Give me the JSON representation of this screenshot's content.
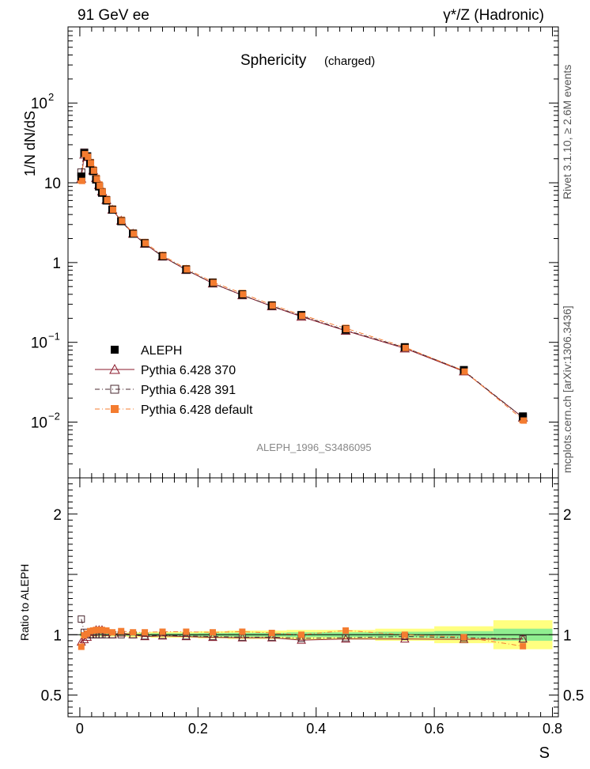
{
  "header": {
    "left": "91 GeV ee",
    "right": "γ*/Z (Hadronic)"
  },
  "side_labels": {
    "rivet": "Rivet 3.1.10, ≥ 2.6M events",
    "mcplots": "mcplots.cern.ch [arXiv:1306.3436]"
  },
  "chart_data": {
    "type": "scatter",
    "title": "Sphericity",
    "subtitle": "(charged)",
    "analysis_tag": "ALEPH_1996_S3486095",
    "xlabel": "S",
    "ylabel": "1/N dN/dS",
    "ratio_ylabel": "Ratio to ALEPH",
    "xlim": [
      -0.02,
      0.81
    ],
    "ylim": [
      0.002,
      900
    ],
    "yscale": "log",
    "ratio_ylim": [
      0.32,
      2.3
    ],
    "x_ticks": [
      "0",
      "0.2",
      "0.4",
      "0.6",
      "0.8"
    ],
    "x_tick_values": [
      0,
      0.2,
      0.4,
      0.6,
      0.8
    ],
    "y_ticks": [
      {
        "value": 0.01,
        "base": "10",
        "exp": "−2"
      },
      {
        "value": 0.1,
        "base": "10",
        "exp": "−1"
      },
      {
        "value": 1,
        "base": "1",
        "exp": ""
      },
      {
        "value": 10,
        "base": "10",
        "exp": ""
      },
      {
        "value": 100,
        "base": "10",
        "exp": "2"
      }
    ],
    "ratio_ticks": [
      {
        "value": 0.5,
        "label": "0.5"
      },
      {
        "value": 1,
        "label": "1"
      },
      {
        "value": 2,
        "label": "2"
      }
    ],
    "x": [
      0.0025,
      0.0075,
      0.0125,
      0.0175,
      0.0225,
      0.0275,
      0.0325,
      0.0375,
      0.045,
      0.055,
      0.07,
      0.09,
      0.11,
      0.14,
      0.18,
      0.225,
      0.275,
      0.325,
      0.375,
      0.45,
      0.55,
      0.65,
      0.75
    ],
    "bin_edges": [
      0.0,
      0.005,
      0.01,
      0.015,
      0.02,
      0.025,
      0.03,
      0.035,
      0.04,
      0.05,
      0.06,
      0.08,
      0.1,
      0.12,
      0.16,
      0.2,
      0.25,
      0.3,
      0.35,
      0.4,
      0.5,
      0.6,
      0.7,
      0.8
    ],
    "legend": [
      {
        "name": "ALEPH",
        "color": "#000000",
        "marker": "square-filled",
        "line": "none"
      },
      {
        "name": "Pythia 6.428 370",
        "color": "#8b1a2b",
        "marker": "triangle-open",
        "line": "solid"
      },
      {
        "name": "Pythia 6.428 391",
        "color": "#4a2830",
        "marker": "square-open",
        "line": "dashdot"
      },
      {
        "name": "Pythia 6.428 default",
        "color": "#f47c30",
        "marker": "square-filled",
        "line": "dashdot"
      }
    ],
    "data": {
      "name": "ALEPH",
      "values": [
        12.0,
        23.5,
        21.5,
        17.5,
        14.0,
        11.0,
        9.0,
        7.5,
        6.0,
        4.6,
        3.3,
        2.3,
        1.75,
        1.2,
        0.82,
        0.56,
        0.4,
        0.29,
        0.22,
        0.145,
        0.087,
        0.045,
        0.0118
      ]
    },
    "series": [
      {
        "name": "Pythia 6.428 370",
        "values": [
          11.3,
          22.6,
          21.0,
          17.5,
          14.3,
          11.5,
          9.4,
          7.8,
          6.1,
          4.6,
          3.35,
          2.3,
          1.72,
          1.19,
          0.81,
          0.548,
          0.39,
          0.283,
          0.21,
          0.14,
          0.084,
          0.0433,
          0.0114
        ],
        "ratio": [
          0.94,
          0.96,
          0.98,
          1.0,
          1.02,
          1.04,
          1.04,
          1.04,
          1.02,
          1.0,
          1.015,
          1.0,
          0.985,
          0.99,
          0.985,
          0.978,
          0.975,
          0.975,
          0.955,
          0.965,
          0.965,
          0.962,
          0.965
        ]
      },
      {
        "name": "Pythia 6.428 391",
        "values": [
          13.5,
          24.0,
          21.5,
          17.5,
          14.0,
          11.0,
          9.0,
          7.5,
          6.0,
          4.6,
          3.3,
          2.3,
          1.73,
          1.2,
          0.81,
          0.55,
          0.39,
          0.285,
          0.215,
          0.142,
          0.086,
          0.044,
          0.0114
        ],
        "ratio": [
          1.13,
          1.02,
          1.0,
          1.0,
          1.0,
          1.0,
          1.0,
          1.0,
          1.0,
          1.0,
          1.0,
          1.0,
          0.99,
          0.995,
          0.99,
          0.985,
          0.98,
          0.98,
          0.97,
          0.975,
          0.985,
          0.975,
          0.965
        ]
      },
      {
        "name": "Pythia 6.428 default",
        "values": [
          10.8,
          23.4,
          21.7,
          18.0,
          14.5,
          11.4,
          9.4,
          7.8,
          6.2,
          4.7,
          3.4,
          2.35,
          1.79,
          1.23,
          0.84,
          0.57,
          0.41,
          0.295,
          0.22,
          0.15,
          0.087,
          0.044,
          0.0107
        ],
        "ratio": [
          0.9,
          0.995,
          1.01,
          1.03,
          1.035,
          1.04,
          1.04,
          1.04,
          1.035,
          1.02,
          1.03,
          1.02,
          1.02,
          1.025,
          1.025,
          1.02,
          1.025,
          1.015,
          1.0,
          1.035,
          1.0,
          0.98,
          0.905
        ]
      }
    ],
    "uncertainty_bands": {
      "stat_color": "#90ee90",
      "total_color": "#ffff80",
      "stat_halfwidth": [
        0.012,
        0.008,
        0.008,
        0.008,
        0.008,
        0.008,
        0.008,
        0.008,
        0.008,
        0.008,
        0.008,
        0.01,
        0.01,
        0.012,
        0.012,
        0.014,
        0.016,
        0.016,
        0.02,
        0.02,
        0.025,
        0.03,
        0.05
      ],
      "total_halfwidth": [
        0.02,
        0.015,
        0.015,
        0.015,
        0.015,
        0.015,
        0.015,
        0.015,
        0.015,
        0.015,
        0.015,
        0.02,
        0.02,
        0.025,
        0.025,
        0.03,
        0.035,
        0.035,
        0.04,
        0.04,
        0.05,
        0.07,
        0.12
      ]
    }
  }
}
